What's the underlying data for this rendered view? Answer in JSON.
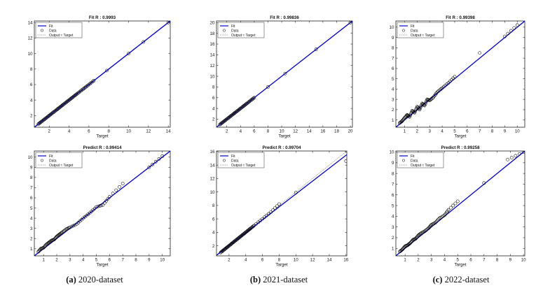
{
  "captions": [
    {
      "letter": "(a)",
      "text": "2020-dataset"
    },
    {
      "letter": "(b)",
      "text": "2021-dataset"
    },
    {
      "letter": "(c)",
      "text": "2022-dataset"
    }
  ],
  "legend": {
    "fit": "Fit",
    "data": "Data",
    "identity": "Output ≈ Target"
  },
  "colors": {
    "fit": "#0000cc",
    "identity": "#777777",
    "points": "#000000"
  },
  "chart_data": [
    {
      "type": "scatter",
      "title": "Fit R : 0.9993",
      "xlabel": "Target",
      "ylabel": "",
      "xlim": [
        0.5,
        14.2
      ],
      "ylim": [
        0.5,
        14.2
      ],
      "xticks": [
        2,
        4,
        6,
        8,
        10,
        12,
        14
      ],
      "yticks": [
        2,
        4,
        6,
        8,
        10,
        12,
        14
      ],
      "r": 0.9993,
      "fit_line": {
        "slope": 1.0,
        "intercept": 0.0
      },
      "points": {
        "x": [
          0.9,
          1.2,
          1.5,
          1.8,
          2.1,
          2.4,
          2.7,
          3.0,
          3.3,
          3.6,
          3.9,
          4.2,
          4.5,
          4.8,
          5.2,
          5.6,
          6.0,
          6.5,
          7.8,
          10.0,
          11.5,
          14.0
        ],
        "y": [
          0.9,
          1.2,
          1.5,
          1.8,
          2.1,
          2.4,
          2.7,
          3.0,
          3.3,
          3.6,
          3.9,
          4.2,
          4.5,
          4.8,
          5.2,
          5.6,
          6.0,
          6.5,
          7.8,
          10.0,
          11.5,
          14.0
        ]
      },
      "grid": false,
      "legend_position": "top-left"
    },
    {
      "type": "scatter",
      "title": "Fit R : 0.99836",
      "xlabel": "Target",
      "ylabel": "",
      "xlim": [
        0.5,
        20.3
      ],
      "ylim": [
        0.5,
        20.3
      ],
      "xticks": [
        2,
        4,
        6,
        8,
        10,
        12,
        14,
        16,
        18,
        20
      ],
      "yticks": [
        2,
        4,
        6,
        8,
        10,
        12,
        14,
        16,
        18,
        20
      ],
      "r": 0.99836,
      "fit_line": {
        "slope": 1.0,
        "intercept": 0.0
      },
      "points": {
        "x": [
          1.0,
          1.4,
          1.8,
          2.2,
          2.6,
          3.0,
          3.4,
          3.8,
          4.2,
          4.6,
          5.0,
          5.5,
          6.0,
          8.0,
          10.5,
          15.0,
          20.0
        ],
        "y": [
          1.0,
          1.4,
          1.8,
          2.2,
          2.6,
          3.0,
          3.4,
          3.8,
          4.2,
          4.6,
          5.0,
          5.5,
          6.0,
          8.0,
          10.5,
          15.0,
          20.0
        ]
      },
      "grid": false,
      "legend_position": "top-left"
    },
    {
      "type": "scatter",
      "title": "Fit R : 0.99398",
      "xlabel": "Target",
      "ylabel": "",
      "xlim": [
        0.3,
        10.6
      ],
      "ylim": [
        0.3,
        10.6
      ],
      "xticks": [
        1,
        2,
        3,
        4,
        5,
        6,
        7,
        8,
        9,
        10
      ],
      "yticks": [
        1,
        2,
        3,
        4,
        5,
        6,
        7,
        8,
        9,
        10
      ],
      "r": 0.99398,
      "fit_line": {
        "slope": 1.0,
        "intercept": 0.0
      },
      "points": {
        "x": [
          0.6,
          0.8,
          1.0,
          1.2,
          1.4,
          1.6,
          1.8,
          2.0,
          2.2,
          2.4,
          2.6,
          2.8,
          3.0,
          3.3,
          3.6,
          4.0,
          4.5,
          5.0,
          7.0,
          9.0,
          10.0
        ],
        "y": [
          0.7,
          0.9,
          1.2,
          1.5,
          1.3,
          1.9,
          1.7,
          2.3,
          2.0,
          2.6,
          2.4,
          3.0,
          2.9,
          3.2,
          3.7,
          4.1,
          4.6,
          5.2,
          7.5,
          9.1,
          10.2
        ]
      },
      "grid": false,
      "legend_position": "top-left"
    },
    {
      "type": "scatter",
      "title": "Predict R : 0.99414",
      "xlabel": "Target",
      "ylabel": "",
      "xlim": [
        0.3,
        10.6
      ],
      "ylim": [
        0.3,
        10.6
      ],
      "xticks": [
        1,
        2,
        3,
        4,
        5,
        6,
        7,
        8,
        9,
        10
      ],
      "yticks": [
        1,
        2,
        3,
        4,
        5,
        6,
        7,
        8,
        9,
        10
      ],
      "r": 0.99414,
      "fit_line": {
        "slope": 1.0,
        "intercept": 0.0
      },
      "points": {
        "x": [
          0.6,
          0.8,
          1.0,
          1.2,
          1.4,
          1.6,
          1.8,
          2.0,
          2.2,
          2.4,
          2.7,
          3.0,
          3.5,
          4.0,
          4.5,
          5.0,
          5.5,
          6.0,
          7.0,
          9.0,
          10.0
        ],
        "y": [
          0.7,
          1.0,
          1.1,
          1.4,
          1.6,
          1.8,
          1.9,
          2.2,
          2.4,
          2.6,
          2.9,
          3.1,
          3.4,
          4.0,
          4.5,
          5.1,
          5.3,
          6.1,
          7.4,
          9.0,
          10.1
        ]
      },
      "grid": false,
      "legend_position": "top-left"
    },
    {
      "type": "scatter",
      "title": "Predict R : 0.99704",
      "xlabel": "Target",
      "ylabel": "",
      "xlim": [
        0.5,
        16.1
      ],
      "ylim": [
        0.5,
        16.1
      ],
      "xticks": [
        2,
        4,
        6,
        8,
        10,
        12,
        14,
        16
      ],
      "yticks": [
        2,
        4,
        6,
        8,
        10,
        12,
        14,
        16
      ],
      "r": 0.99704,
      "fit_line": {
        "slope": 0.96,
        "intercept": 0.1
      },
      "points": {
        "x": [
          1.0,
          1.3,
          1.6,
          1.9,
          2.2,
          2.5,
          2.8,
          3.1,
          3.4,
          3.7,
          4.0,
          4.3,
          4.6,
          5.0,
          6.0,
          7.0,
          8.0,
          10.0,
          16.0
        ],
        "y": [
          1.0,
          1.3,
          1.6,
          1.9,
          2.2,
          2.5,
          2.8,
          3.1,
          3.4,
          3.7,
          4.0,
          4.3,
          4.6,
          5.0,
          6.0,
          7.0,
          8.2,
          9.9,
          14.6
        ],
        "note": ""
      },
      "grid": false,
      "legend_position": "top-left"
    },
    {
      "type": "scatter",
      "title": "Predict R : 0.99258",
      "xlabel": "Target",
      "ylabel": "",
      "xlim": [
        0.3,
        10.1
      ],
      "ylim": [
        0.3,
        10.1
      ],
      "xticks": [
        1,
        2,
        3,
        4,
        5,
        6,
        7,
        8,
        9,
        10
      ],
      "yticks": [
        1,
        2,
        3,
        4,
        5,
        6,
        7,
        8,
        9,
        10
      ],
      "r": 0.99258,
      "fit_line": {
        "slope": 1.0,
        "intercept": 0.0
      },
      "points": {
        "x": [
          0.6,
          0.8,
          1.0,
          1.2,
          1.4,
          1.6,
          1.8,
          2.0,
          2.2,
          2.5,
          2.8,
          3.0,
          3.3,
          3.6,
          4.0,
          4.3,
          5.0,
          7.0,
          8.8,
          10.0
        ],
        "y": [
          0.7,
          0.9,
          1.2,
          1.3,
          1.5,
          1.8,
          1.9,
          2.2,
          2.4,
          2.6,
          2.9,
          3.2,
          3.4,
          3.8,
          4.1,
          4.6,
          5.4,
          7.1,
          9.3,
          10.0
        ]
      },
      "grid": false,
      "legend_position": "top-left"
    }
  ]
}
